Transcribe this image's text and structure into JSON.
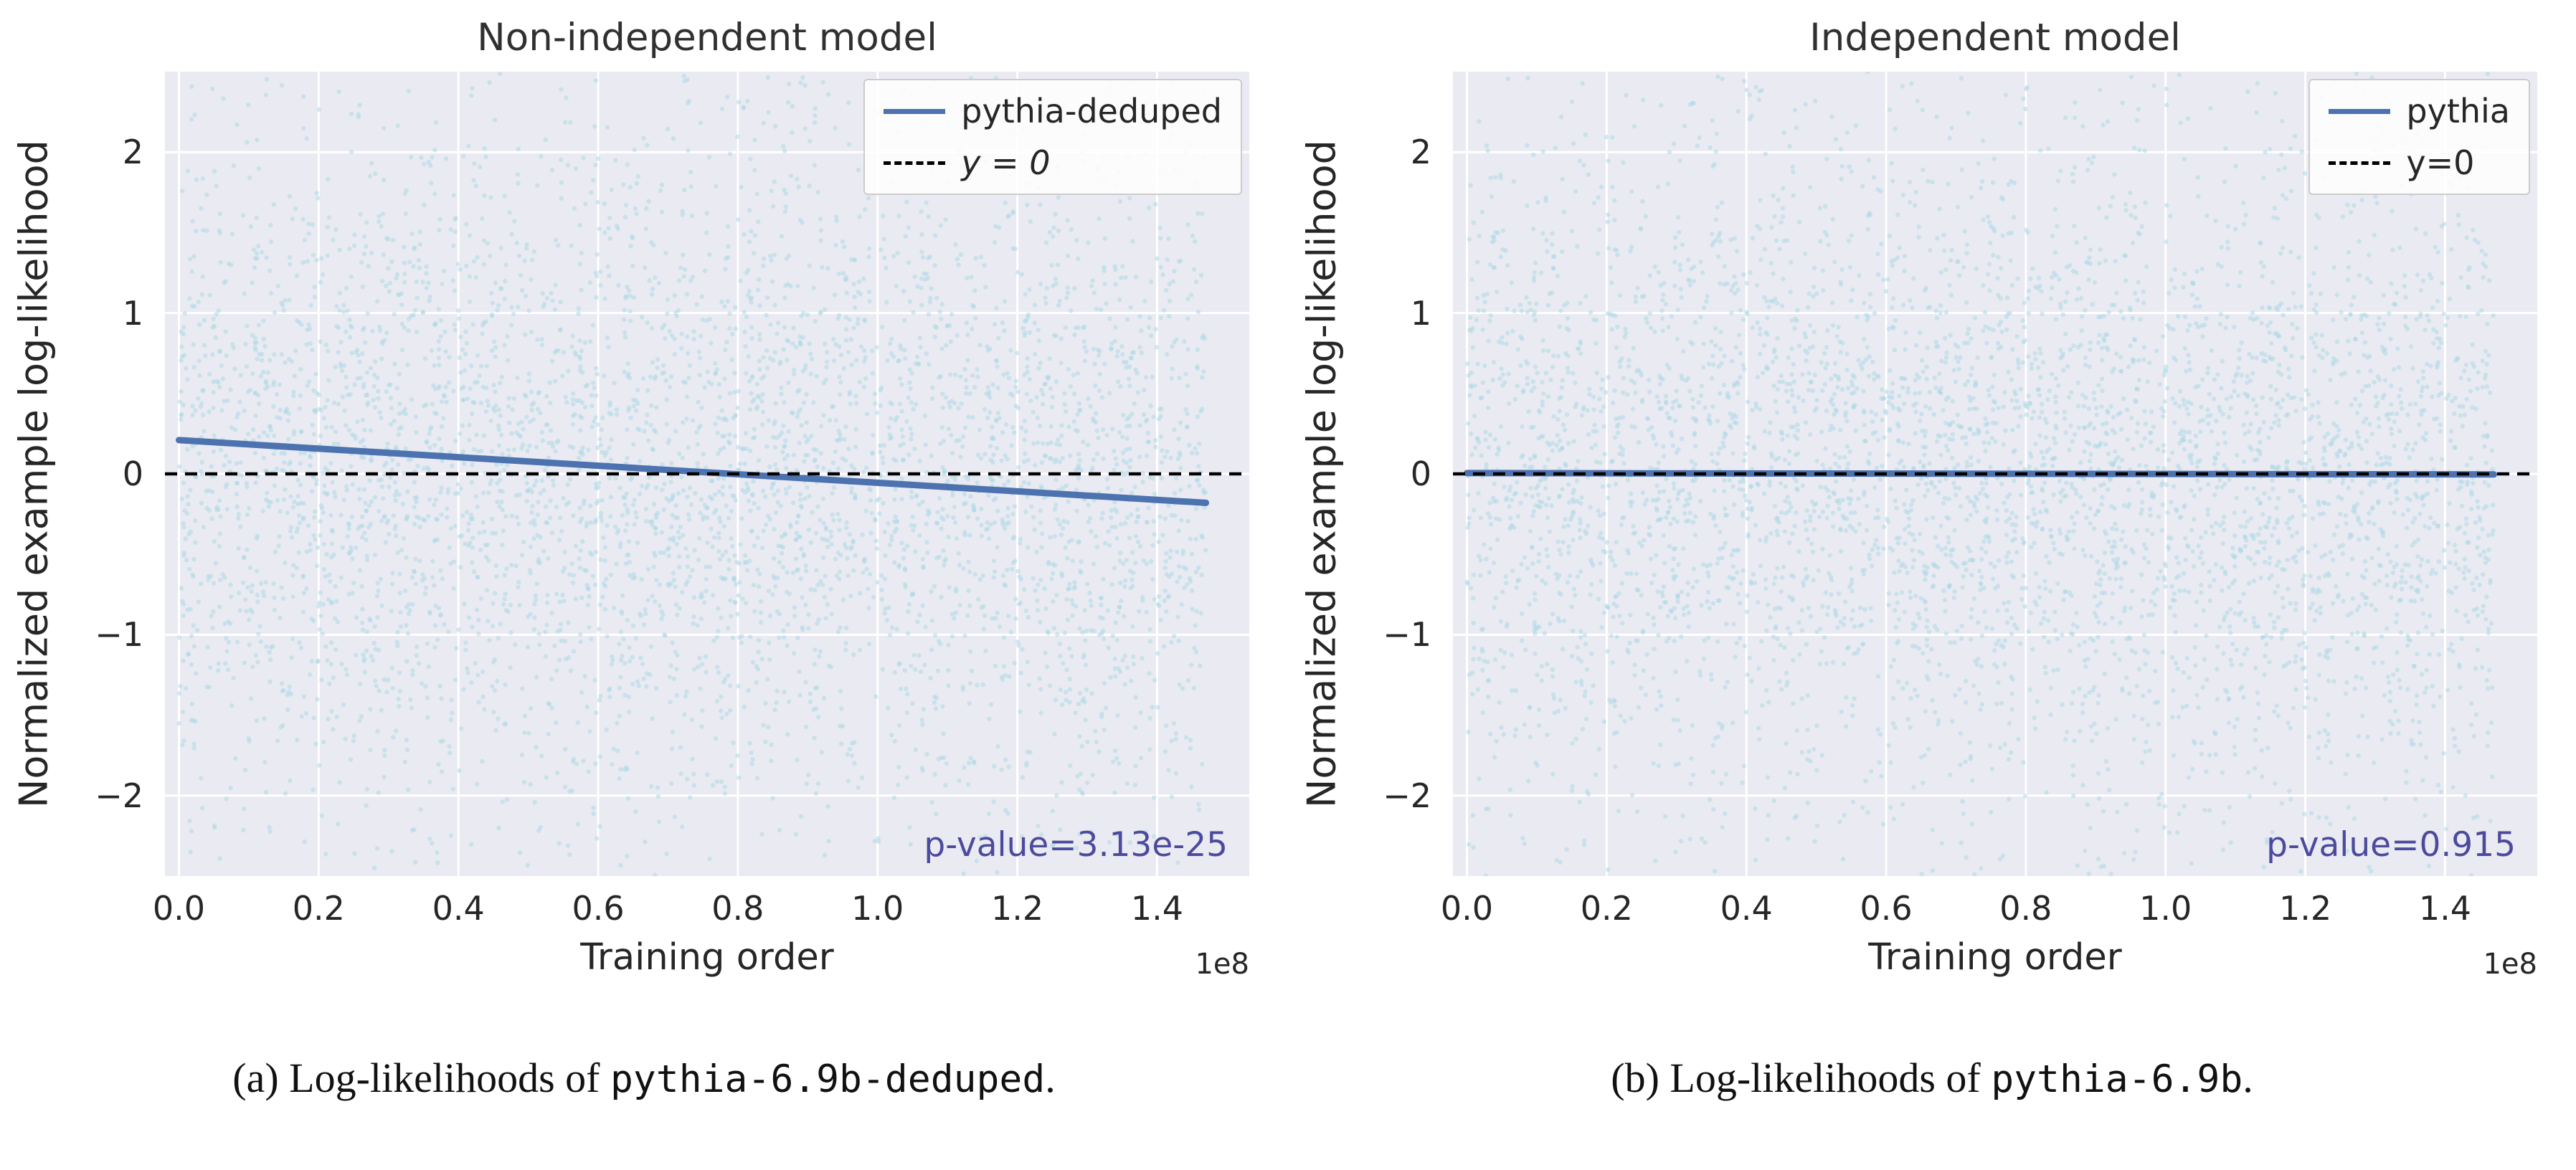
{
  "style": {
    "page_bg": "#ffffff",
    "plot_bg": "#eaeaf2",
    "grid_color": "#ffffff",
    "scatter_color": "#add8e6",
    "scatter_opacity": 0.55,
    "trend_color": "#4c72b0",
    "zero_line_color": "#000000",
    "pvalue_color": "#4c4a9c",
    "text_color": "#262626"
  },
  "chart_data": [
    {
      "type": "scatter",
      "title": "Non-independent model",
      "xlabel": "Training order",
      "ylabel": "Normalized example log-likelihood",
      "offset_text": "1e8",
      "xlim": [
        -0.02,
        1.532
      ],
      "ylim": [
        -2.5,
        2.5
      ],
      "xticks": [
        {
          "v": 0.0,
          "label": "0.0"
        },
        {
          "v": 0.2,
          "label": "0.2"
        },
        {
          "v": 0.4,
          "label": "0.4"
        },
        {
          "v": 0.6,
          "label": "0.6"
        },
        {
          "v": 0.8,
          "label": "0.8"
        },
        {
          "v": 1.0,
          "label": "1.0"
        },
        {
          "v": 1.2,
          "label": "1.2"
        },
        {
          "v": 1.4,
          "label": "1.4"
        }
      ],
      "yticks": [
        {
          "v": 2,
          "label": "2"
        },
        {
          "v": 1,
          "label": "1"
        },
        {
          "v": 0,
          "label": "0"
        },
        {
          "v": -1,
          "label": "−1"
        },
        {
          "v": -2,
          "label": "−2"
        }
      ],
      "legend": [
        {
          "label": "pythia-deduped",
          "line": "solid-blue",
          "math": false
        },
        {
          "label": "y = 0",
          "line": "dashed-black",
          "math": true
        }
      ],
      "pvalue": "p-value=3.13e-25",
      "trend": {
        "x0": 0.0,
        "y0": 0.21,
        "x1": 1.47,
        "y1": -0.18,
        "x_units": "1e8"
      },
      "zero_line": {
        "y": 0,
        "style": "dashed"
      },
      "scatter": {
        "n": 4600,
        "x_min": 0.0,
        "x_max": 1.47,
        "y_mean": 0,
        "y_core_std": 0.95,
        "y_core_frac": 0.84,
        "seed": 11,
        "note": "dense cloud of ~thousands of light-blue points, approx. zero-mean noise spanning y in [-2.5, 2.5], uniform over training order"
      },
      "caption": {
        "prefix": "(a) Log-likelihoods of ",
        "code": "pythia-6.9b-deduped",
        "suffix": "."
      }
    },
    {
      "type": "scatter",
      "title": "Independent model",
      "xlabel": "Training order",
      "ylabel": "Normalized example log-likelihood",
      "offset_text": "1e8",
      "xlim": [
        -0.02,
        1.532
      ],
      "ylim": [
        -2.5,
        2.5
      ],
      "xticks": [
        {
          "v": 0.0,
          "label": "0.0"
        },
        {
          "v": 0.2,
          "label": "0.2"
        },
        {
          "v": 0.4,
          "label": "0.4"
        },
        {
          "v": 0.6,
          "label": "0.6"
        },
        {
          "v": 0.8,
          "label": "0.8"
        },
        {
          "v": 1.0,
          "label": "1.0"
        },
        {
          "v": 1.2,
          "label": "1.2"
        },
        {
          "v": 1.4,
          "label": "1.4"
        }
      ],
      "yticks": [
        {
          "v": 2,
          "label": "2"
        },
        {
          "v": 1,
          "label": "1"
        },
        {
          "v": 0,
          "label": "0"
        },
        {
          "v": -1,
          "label": "−1"
        },
        {
          "v": -2,
          "label": "−2"
        }
      ],
      "legend": [
        {
          "label": "pythia",
          "line": "solid-blue",
          "math": false
        },
        {
          "label": "y=0",
          "line": "dashed-black",
          "math": false
        }
      ],
      "pvalue": "p-value=0.915",
      "trend": {
        "x0": 0.0,
        "y0": 0.005,
        "x1": 1.47,
        "y1": -0.003,
        "x_units": "1e8"
      },
      "zero_line": {
        "y": 0,
        "style": "dashed"
      },
      "scatter": {
        "n": 4600,
        "x_min": 0.0,
        "x_max": 1.47,
        "y_mean": 0,
        "y_core_std": 0.95,
        "y_core_frac": 0.84,
        "seed": 29,
        "note": "dense cloud of ~thousands of light-blue points, approx. zero-mean noise spanning y in [-2.5, 2.5], uniform over training order"
      },
      "caption": {
        "prefix": "(b) Log-likelihoods of ",
        "code": "pythia-6.9b",
        "suffix": "."
      }
    }
  ]
}
